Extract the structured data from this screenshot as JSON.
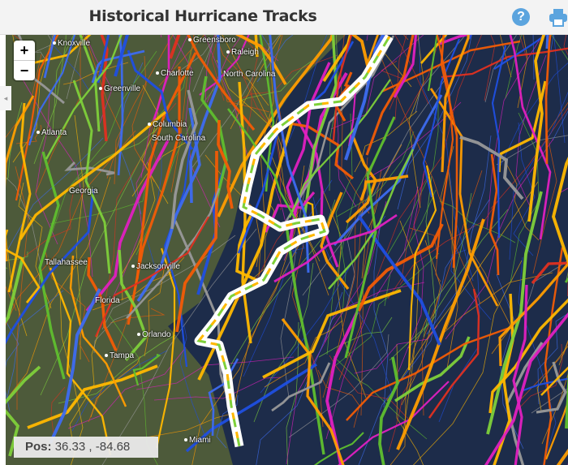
{
  "header": {
    "title": "Historical Hurricane Tracks",
    "help_icon": "question-circle-icon",
    "print_icon": "print-icon"
  },
  "map": {
    "zoom_in": "+",
    "zoom_out": "−",
    "position": {
      "label": "Pos:",
      "value": "36.33 , -84.68"
    },
    "cities": [
      "Knoxville",
      "Greensboro",
      "Raleigh",
      "Charlotte",
      "North Carolina",
      "Greenville",
      "Atlanta",
      "Columbia",
      "South Carolina",
      "Georgia",
      "Tallahassee",
      "Jacksonville",
      "Florida",
      "Orlando",
      "Tampa",
      "Miami"
    ],
    "track_colors": [
      "#1f4fe0",
      "#3d6cf0",
      "#5fbf2e",
      "#7ed03a",
      "#ff9d00",
      "#ffb800",
      "#f25c05",
      "#999999",
      "#e020c0",
      "#e03020"
    ],
    "highlight_color": "#ffffff"
  }
}
